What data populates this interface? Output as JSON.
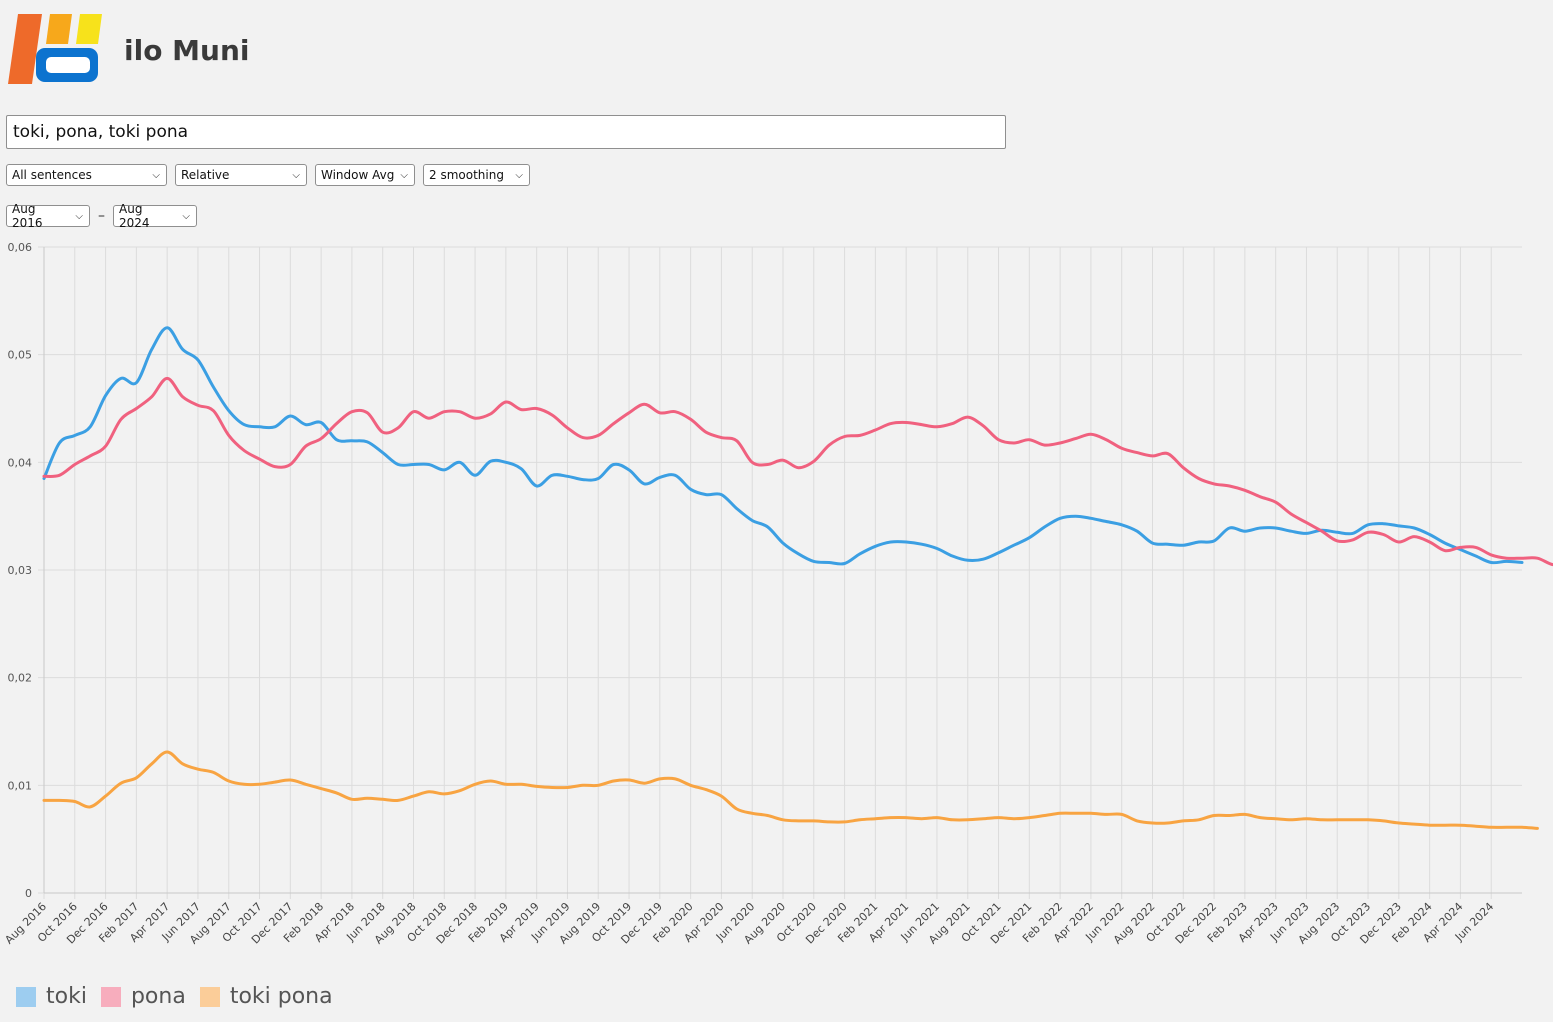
{
  "app": {
    "title": "ilo Muni"
  },
  "search": {
    "value": "toki, pona, toki pona"
  },
  "controls": {
    "scope": "All sentences",
    "mode": "Relative",
    "smoothing_method": "Window Avg",
    "smoothing": "2 smoothing",
    "date_start": "Aug 2016",
    "date_sep": "–",
    "date_end": "Aug 2024"
  },
  "colors": {
    "toki": "#3b9fe3",
    "pona": "#f0617f",
    "toki_pona": "#f8a442",
    "grid": "#dcdcdc"
  },
  "chart_data": {
    "type": "line",
    "x_start": "Aug 2016",
    "x_end": "Jul 2024",
    "x_ticks": [
      "Aug 2016",
      "Oct 2016",
      "Dec 2016",
      "Feb 2017",
      "Apr 2017",
      "Jun 2017",
      "Aug 2017",
      "Oct 2017",
      "Dec 2017",
      "Feb 2018",
      "Apr 2018",
      "Jun 2018",
      "Aug 2018",
      "Oct 2018",
      "Dec 2018",
      "Feb 2019",
      "Apr 2019",
      "Jun 2019",
      "Aug 2019",
      "Oct 2019",
      "Dec 2019",
      "Feb 2020",
      "Apr 2020",
      "Jun 2020",
      "Aug 2020",
      "Oct 2020",
      "Dec 2020",
      "Feb 2021",
      "Apr 2021",
      "Jun 2021",
      "Aug 2021",
      "Oct 2021",
      "Dec 2021",
      "Feb 2022",
      "Apr 2022",
      "Jun 2022",
      "Aug 2022",
      "Oct 2022",
      "Dec 2022",
      "Feb 2023",
      "Apr 2023",
      "Jun 2023",
      "Aug 2023",
      "Oct 2023",
      "Dec 2023",
      "Feb 2024",
      "Apr 2024",
      "Jun 2024"
    ],
    "y_ticks": [
      "0",
      "0,01",
      "0,02",
      "0,03",
      "0,04",
      "0,05",
      "0,06"
    ],
    "ylim": [
      0,
      0.06
    ],
    "grid": true,
    "legend_position": "bottom-left",
    "series": [
      {
        "name": "toki",
        "values": [
          0.0385,
          0.0418,
          0.0425,
          0.0433,
          0.0462,
          0.0478,
          0.0474,
          0.0505,
          0.0525,
          0.0505,
          0.0495,
          0.047,
          0.0448,
          0.0435,
          0.0433,
          0.0433,
          0.0443,
          0.0435,
          0.0437,
          0.0421,
          0.042,
          0.0419,
          0.0409,
          0.0398,
          0.0398,
          0.0398,
          0.0393,
          0.04,
          0.0388,
          0.0401,
          0.04,
          0.0394,
          0.0378,
          0.0388,
          0.0387,
          0.0384,
          0.0385,
          0.0398,
          0.0393,
          0.038,
          0.0386,
          0.0388,
          0.0375,
          0.037,
          0.037,
          0.0357,
          0.0346,
          0.034,
          0.0325,
          0.0315,
          0.0308,
          0.0307,
          0.0306,
          0.0315,
          0.0322,
          0.0326,
          0.0326,
          0.0324,
          0.032,
          0.0313,
          0.0309,
          0.031,
          0.0316,
          0.0323,
          0.033,
          0.034,
          0.0348,
          0.035,
          0.0348,
          0.0345,
          0.0342,
          0.0336,
          0.0325,
          0.0324,
          0.0323,
          0.0326,
          0.0327,
          0.0339,
          0.0336,
          0.0339,
          0.0339,
          0.0336,
          0.0334,
          0.0337,
          0.0335,
          0.0334,
          0.0342,
          0.0343,
          0.0341,
          0.0339,
          0.0333,
          0.0325,
          0.0319,
          0.0313,
          0.0307,
          0.0308,
          0.0307
        ]
      },
      {
        "name": "pona",
        "values": [
          0.0387,
          0.0388,
          0.0398,
          0.0406,
          0.0415,
          0.044,
          0.045,
          0.0461,
          0.0478,
          0.0461,
          0.0453,
          0.0448,
          0.0425,
          0.0411,
          0.0403,
          0.0396,
          0.0398,
          0.0415,
          0.0422,
          0.0436,
          0.0447,
          0.0446,
          0.0428,
          0.0432,
          0.0447,
          0.0441,
          0.0447,
          0.0447,
          0.0441,
          0.0445,
          0.0456,
          0.0449,
          0.045,
          0.0444,
          0.0432,
          0.0423,
          0.0425,
          0.0436,
          0.0446,
          0.0454,
          0.0446,
          0.0447,
          0.044,
          0.0428,
          0.0423,
          0.042,
          0.04,
          0.0398,
          0.0402,
          0.0395,
          0.0401,
          0.0416,
          0.0424,
          0.0425,
          0.043,
          0.0436,
          0.0437,
          0.0435,
          0.0433,
          0.0436,
          0.0442,
          0.0434,
          0.0421,
          0.0418,
          0.0421,
          0.0416,
          0.0418,
          0.0422,
          0.0426,
          0.0421,
          0.0413,
          0.0409,
          0.0406,
          0.0408,
          0.0395,
          0.0385,
          0.038,
          0.0378,
          0.0374,
          0.0368,
          0.0363,
          0.0352,
          0.0344,
          0.0336,
          0.0327,
          0.0328,
          0.0335,
          0.0333,
          0.0326,
          0.0331,
          0.0326,
          0.0318,
          0.0321,
          0.0321,
          0.0314,
          0.0311,
          0.0311,
          0.0311,
          0.0305,
          0.0306,
          0.0308
        ]
      },
      {
        "name": "toki pona",
        "values": [
          0.0086,
          0.0086,
          0.0085,
          0.008,
          0.009,
          0.0102,
          0.0107,
          0.012,
          0.0131,
          0.012,
          0.0115,
          0.0112,
          0.0104,
          0.0101,
          0.0101,
          0.0103,
          0.0105,
          0.0101,
          0.0097,
          0.0093,
          0.0087,
          0.0088,
          0.0087,
          0.0086,
          0.009,
          0.0094,
          0.0092,
          0.0095,
          0.0101,
          0.0104,
          0.0101,
          0.0101,
          0.0099,
          0.0098,
          0.0098,
          0.01,
          0.01,
          0.0104,
          0.0105,
          0.0102,
          0.0106,
          0.0106,
          0.01,
          0.0096,
          0.009,
          0.0078,
          0.0074,
          0.0072,
          0.0068,
          0.0067,
          0.0067,
          0.0066,
          0.0066,
          0.0068,
          0.0069,
          0.007,
          0.007,
          0.0069,
          0.007,
          0.0068,
          0.0068,
          0.0069,
          0.007,
          0.0069,
          0.007,
          0.0072,
          0.0074,
          0.0074,
          0.0074,
          0.0073,
          0.0073,
          0.0067,
          0.0065,
          0.0065,
          0.0067,
          0.0068,
          0.0072,
          0.0072,
          0.0073,
          0.007,
          0.0069,
          0.0068,
          0.0069,
          0.0068,
          0.0068,
          0.0068,
          0.0068,
          0.0067,
          0.0065,
          0.0064,
          0.0063,
          0.0063,
          0.0063,
          0.0062,
          0.0061,
          0.0061,
          0.0061,
          0.006
        ]
      }
    ]
  }
}
